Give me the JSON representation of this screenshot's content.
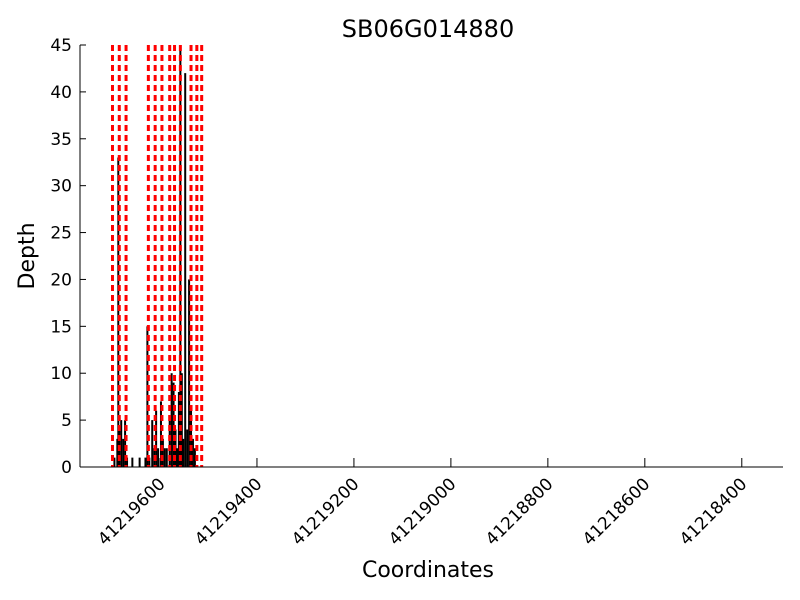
{
  "chart_data": {
    "type": "bar",
    "title": "SB06G014880",
    "xlabel": "Coordinates",
    "ylabel": "Depth",
    "xlim": [
      41219765,
      41218315
    ],
    "ylim": [
      0,
      45
    ],
    "x_reversed": true,
    "grid": false,
    "y_ticks": [
      0,
      5,
      10,
      15,
      20,
      25,
      30,
      35,
      40,
      45
    ],
    "x_ticks": [
      41219600,
      41219400,
      41219200,
      41219000,
      41218800,
      41218600,
      41218400
    ],
    "depth_bars": [
      {
        "x": 41219694,
        "y": 1
      },
      {
        "x": 41219688,
        "y": 3
      },
      {
        "x": 41219686,
        "y": 33
      },
      {
        "x": 41219684,
        "y": 4
      },
      {
        "x": 41219680,
        "y": 5
      },
      {
        "x": 41219676,
        "y": 3
      },
      {
        "x": 41219672,
        "y": 5
      },
      {
        "x": 41219668,
        "y": 1
      },
      {
        "x": 41219657,
        "y": 1
      },
      {
        "x": 41219642,
        "y": 1
      },
      {
        "x": 41219630,
        "y": 1
      },
      {
        "x": 41219626,
        "y": 15
      },
      {
        "x": 41219622,
        "y": 1
      },
      {
        "x": 41219616,
        "y": 5
      },
      {
        "x": 41219612,
        "y": 2
      },
      {
        "x": 41219608,
        "y": 6
      },
      {
        "x": 41219604,
        "y": 2
      },
      {
        "x": 41219598,
        "y": 7
      },
      {
        "x": 41219594,
        "y": 3
      },
      {
        "x": 41219590,
        "y": 2
      },
      {
        "x": 41219586,
        "y": 2
      },
      {
        "x": 41219580,
        "y": 5
      },
      {
        "x": 41219576,
        "y": 10
      },
      {
        "x": 41219572,
        "y": 9
      },
      {
        "x": 41219568,
        "y": 4
      },
      {
        "x": 41219564,
        "y": 2
      },
      {
        "x": 41219561,
        "y": 8
      },
      {
        "x": 41219558,
        "y": 45
      },
      {
        "x": 41219555,
        "y": 10
      },
      {
        "x": 41219552,
        "y": 3
      },
      {
        "x": 41219548,
        "y": 42
      },
      {
        "x": 41219544,
        "y": 4
      },
      {
        "x": 41219540,
        "y": 20
      },
      {
        "x": 41219536,
        "y": 6
      },
      {
        "x": 41219532,
        "y": 3
      },
      {
        "x": 41219528,
        "y": 2
      }
    ],
    "exon_boundaries": [
      41219698,
      41219684,
      41219670,
      41219624,
      41219610,
      41219596,
      41219580,
      41219570,
      41219558,
      41219536,
      41219524,
      41219514
    ],
    "boundary_line_color": "#ff0000",
    "bar_color": "#000000"
  }
}
